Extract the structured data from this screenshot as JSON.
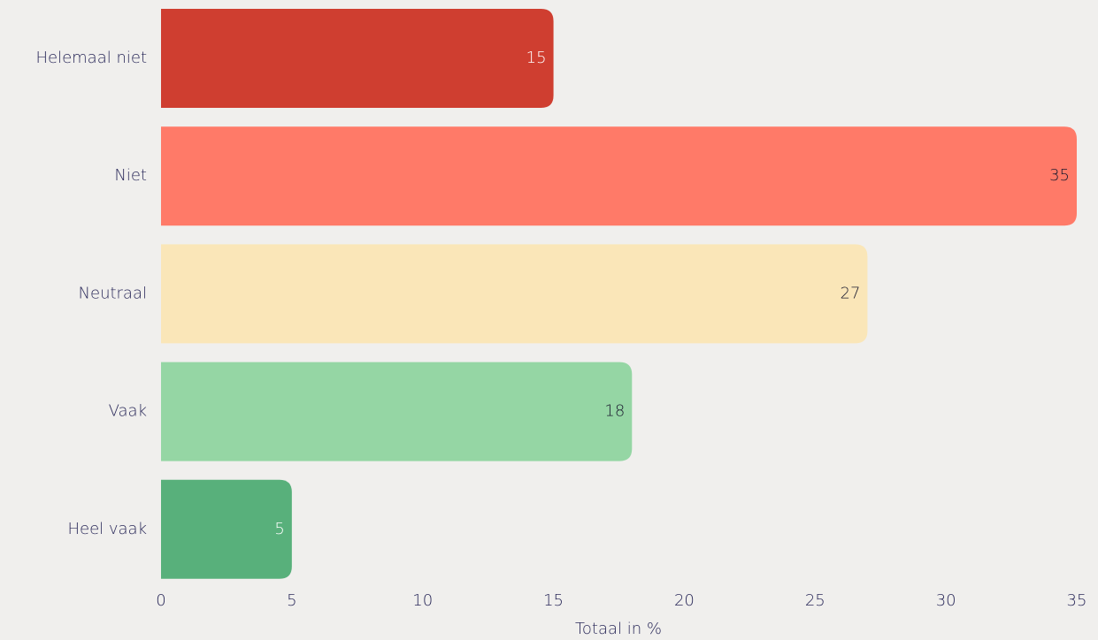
{
  "chart_data": {
    "type": "barh",
    "x_label": "Totaal in %",
    "categories": [
      "Helemaal niet",
      "Niet",
      "Neutraal",
      "Vaak",
      "Heel vaak"
    ],
    "values": [
      15,
      35,
      27,
      18,
      5
    ],
    "colors": [
      "#cf3e30",
      "#ff7a68",
      "#fae6b8",
      "#95d6a4",
      "#58b07b"
    ],
    "value_label_colors": [
      "#ffffff",
      "#1a1a2e",
      "#1a1a2e",
      "#1a1a2e",
      "#ffffff"
    ],
    "xlim": [
      0,
      35
    ],
    "xticks": [
      0,
      5,
      10,
      15,
      20,
      25,
      30,
      35
    ],
    "grid": false
  }
}
